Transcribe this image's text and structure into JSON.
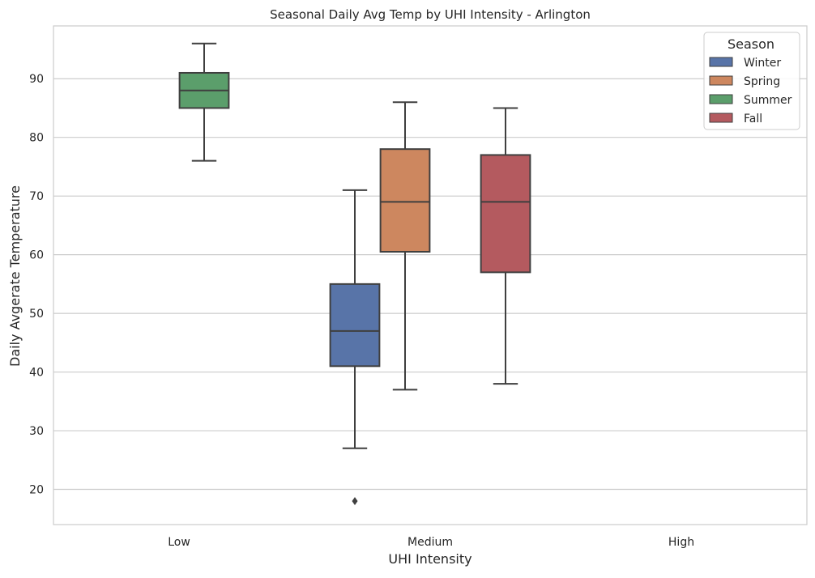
{
  "chart_data": {
    "type": "box",
    "title": "Seasonal Daily Avg Temp by UHI Intensity - Arlington",
    "xlabel": "UHI Intensity",
    "ylabel": "Daily Avgerate Temperature",
    "categories": [
      "Low",
      "Medium",
      "High"
    ],
    "y_ticks": [
      20,
      30,
      40,
      50,
      60,
      70,
      80,
      90
    ],
    "ylim": [
      14,
      99
    ],
    "grid": "horizontal",
    "legend": {
      "title": "Season",
      "placement": "top-right",
      "entries": [
        "Winter",
        "Spring",
        "Summer",
        "Fall"
      ]
    },
    "colors": {
      "Winter": "#5874a8",
      "Spring": "#cd875f",
      "Summer": "#5b9e6b",
      "Fall": "#b45a5f",
      "grid": "#cccccc",
      "box_edge": "#3f3f3f"
    },
    "series": [
      {
        "name": "Winter",
        "boxes": [
          {
            "category": "Medium",
            "whisker_low": 27,
            "q1": 41,
            "median": 47,
            "q3": 55,
            "whisker_high": 71,
            "outliers": [
              18
            ]
          }
        ]
      },
      {
        "name": "Spring",
        "boxes": [
          {
            "category": "Medium",
            "whisker_low": 37,
            "q1": 60.5,
            "median": 69,
            "q3": 78,
            "whisker_high": 86,
            "outliers": []
          }
        ]
      },
      {
        "name": "Summer",
        "boxes": [
          {
            "category": "Low",
            "whisker_low": 76,
            "q1": 85,
            "median": 88,
            "q3": 91,
            "whisker_high": 96,
            "outliers": []
          }
        ]
      },
      {
        "name": "Fall",
        "boxes": [
          {
            "category": "Medium",
            "whisker_low": 38,
            "q1": 57,
            "median": 69,
            "q3": 77,
            "whisker_high": 85,
            "outliers": []
          }
        ]
      }
    ]
  }
}
